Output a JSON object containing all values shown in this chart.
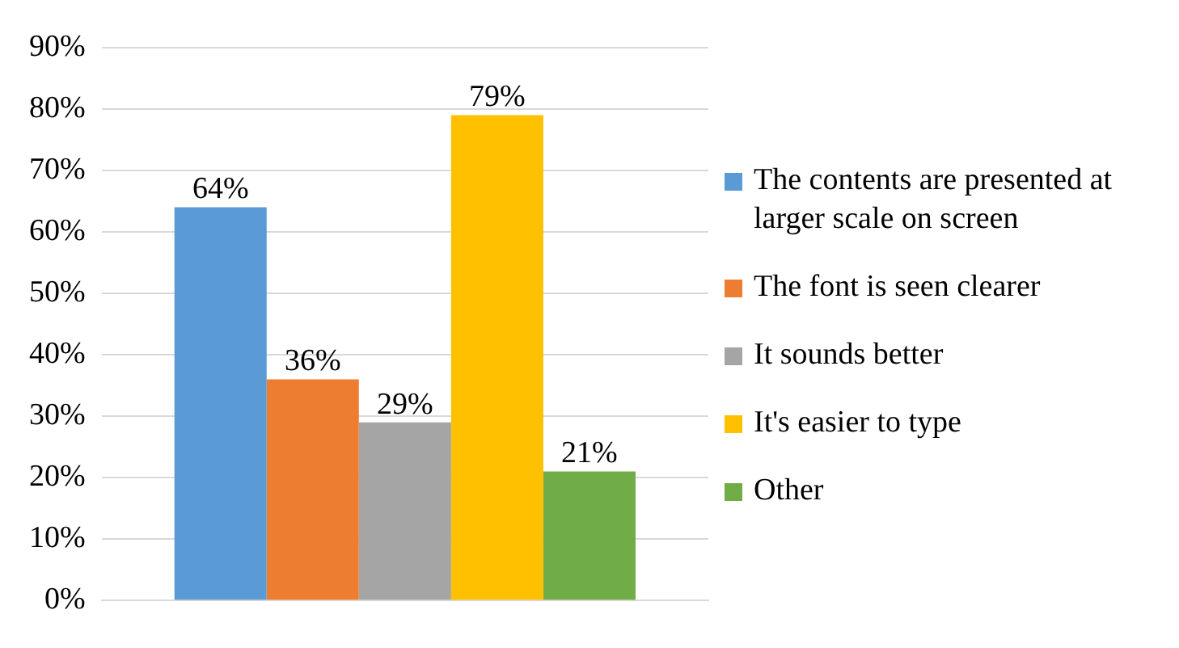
{
  "chart_data": {
    "type": "bar",
    "categories": [
      null
    ],
    "series": [
      {
        "name": "The contents are presented at larger scale on screen",
        "color": "#5b9bd5",
        "values": [
          64
        ],
        "value_labels": [
          "64%"
        ]
      },
      {
        "name": "The font is seen clearer",
        "color": "#ed7d31",
        "values": [
          36
        ],
        "value_labels": [
          "36%"
        ]
      },
      {
        "name": "It sounds better",
        "color": "#a5a5a5",
        "values": [
          29
        ],
        "value_labels": [
          "29%"
        ]
      },
      {
        "name": "It's easier to type",
        "color": "#ffc000",
        "values": [
          79
        ],
        "value_labels": [
          "79%"
        ]
      },
      {
        "name": "Other",
        "color": "#70ad47",
        "values": [
          21
        ],
        "value_labels": [
          "21%"
        ]
      }
    ],
    "ylim": [
      0,
      90
    ],
    "yticks": [
      {
        "value": 0,
        "label": "0%"
      },
      {
        "value": 10,
        "label": "10%"
      },
      {
        "value": 20,
        "label": "20%"
      },
      {
        "value": 30,
        "label": "30%"
      },
      {
        "value": 40,
        "label": "40%"
      },
      {
        "value": 50,
        "label": "50%"
      },
      {
        "value": 60,
        "label": "60%"
      },
      {
        "value": 70,
        "label": "70%"
      },
      {
        "value": 80,
        "label": "80%"
      },
      {
        "value": 90,
        "label": "90%"
      }
    ],
    "grid": "y",
    "legend": "right"
  }
}
